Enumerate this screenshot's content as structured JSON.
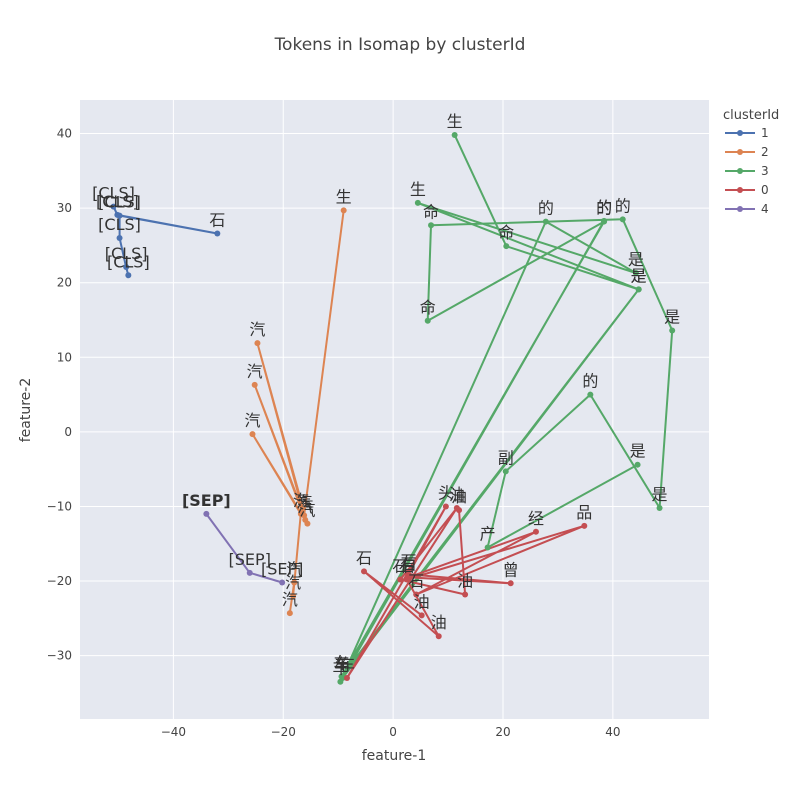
{
  "chart_data": {
    "type": "scatter",
    "title": "Tokens in Isomap by clusterId",
    "xlabel": "feature-1",
    "ylabel": "feature-2",
    "xlim": [
      -57,
      57.5
    ],
    "ylim": [
      -38.5,
      44.5
    ],
    "xticks": [
      -40,
      -20,
      0,
      20,
      40
    ],
    "yticks": [
      -30,
      -20,
      -10,
      0,
      10,
      20,
      30,
      40
    ],
    "grid": true,
    "legend_title": "clusterId",
    "legend_position": "top-right",
    "series": [
      {
        "name": "1",
        "color": "#4c72b0",
        "points": [
          {
            "x": -50.9,
            "y": 30.2,
            "label": "[CLS]"
          },
          {
            "x": -50.2,
            "y": 29.1,
            "label": "[CLS]"
          },
          {
            "x": -32.0,
            "y": 26.6,
            "label": "石"
          },
          {
            "x": -49.8,
            "y": 29.0,
            "label": "[CLS]"
          },
          {
            "x": -49.8,
            "y": 26.0,
            "label": "[CLS]"
          },
          {
            "x": -48.6,
            "y": 22.1,
            "label": "[CLS]"
          },
          {
            "x": -48.2,
            "y": 21.0,
            "label": "[CLS]"
          }
        ]
      },
      {
        "name": "2",
        "color": "#dd8452",
        "points": [
          {
            "x": -9.0,
            "y": 29.7,
            "label": "生"
          },
          {
            "x": -16.2,
            "y": -11.2,
            "label": "汽"
          },
          {
            "x": -24.7,
            "y": 11.9,
            "label": "汽"
          },
          {
            "x": -15.6,
            "y": -12.3,
            "label": "汽"
          },
          {
            "x": -25.2,
            "y": 6.3,
            "label": "汽"
          },
          {
            "x": -16.0,
            "y": -11.8,
            "label": "汽"
          },
          {
            "x": -25.6,
            "y": -0.3,
            "label": "汽"
          },
          {
            "x": -16.8,
            "y": -11.0,
            "label": "汽"
          },
          {
            "x": -18.2,
            "y": -22.0,
            "label": "汽"
          },
          {
            "x": -18.0,
            "y": -20.2,
            "label": "汽"
          },
          {
            "x": -18.8,
            "y": -24.3,
            "label": "汽"
          }
        ]
      },
      {
        "name": "3",
        "color": "#55a868",
        "points": [
          {
            "x": 11.2,
            "y": 39.8,
            "label": "生"
          },
          {
            "x": 20.6,
            "y": 24.9,
            "label": "命"
          },
          {
            "x": 44.7,
            "y": 19.1,
            "label": "是"
          },
          {
            "x": 4.5,
            "y": 30.7,
            "label": "生"
          },
          {
            "x": 44.2,
            "y": 21.3,
            "label": "是"
          },
          {
            "x": 27.8,
            "y": 28.2,
            "label": "的"
          },
          {
            "x": -9.6,
            "y": -33.5,
            "label": "车"
          },
          {
            "x": 38.4,
            "y": 28.3,
            "label": "的"
          },
          {
            "x": -9.2,
            "y": -33.0,
            "label": "车"
          },
          {
            "x": 44.7,
            "y": 19.1,
            "label": "是"
          },
          {
            "x": -9.4,
            "y": -32.8,
            "label": "车"
          },
          {
            "x": 38.4,
            "y": 28.2,
            "label": "的"
          },
          {
            "x": 6.3,
            "y": 14.9,
            "label": "命"
          },
          {
            "x": 6.9,
            "y": 27.7,
            "label": "命"
          },
          {
            "x": 41.8,
            "y": 28.5,
            "label": "的"
          },
          {
            "x": 50.8,
            "y": 13.6,
            "label": "是"
          },
          {
            "x": 48.5,
            "y": -10.2,
            "label": "是"
          },
          {
            "x": 35.9,
            "y": 5.0,
            "label": "的"
          },
          {
            "x": 20.5,
            "y": -5.3,
            "label": "副"
          },
          {
            "x": 17.2,
            "y": -15.5,
            "label": "产"
          },
          {
            "x": 44.5,
            "y": -4.4,
            "label": "是"
          }
        ]
      },
      {
        "name": "0",
        "color": "#c44e52",
        "points": [
          {
            "x": 12.0,
            "y": -10.5,
            "label": "油"
          },
          {
            "x": 13.1,
            "y": -21.8,
            "label": "油"
          },
          {
            "x": 1.3,
            "y": -19.8,
            "label": "石"
          },
          {
            "x": 11.6,
            "y": -10.2,
            "label": "油"
          },
          {
            "x": -8.4,
            "y": -33.0,
            "label": "车"
          },
          {
            "x": 9.6,
            "y": -10.0,
            "label": "头"
          },
          {
            "x": 2.8,
            "y": -19.1,
            "label": "石"
          },
          {
            "x": 21.4,
            "y": -20.3,
            "label": "曾"
          },
          {
            "x": 2.8,
            "y": -19.5,
            "label": "石"
          },
          {
            "x": 26.0,
            "y": -13.4,
            "label": "经"
          },
          {
            "x": 4.2,
            "y": -21.8,
            "label": "石"
          },
          {
            "x": 34.8,
            "y": -12.6,
            "label": "品"
          },
          {
            "x": 2.5,
            "y": -19.8,
            "label": "石"
          },
          {
            "x": 8.3,
            "y": -27.4,
            "label": "油"
          },
          {
            "x": -5.3,
            "y": -18.7,
            "label": "石"
          },
          {
            "x": 5.2,
            "y": -24.6,
            "label": "油"
          }
        ]
      },
      {
        "name": "4",
        "color": "#8172b3",
        "points": [
          {
            "x": -34.0,
            "y": -11.0,
            "label": "[SEP]"
          },
          {
            "x": -26.1,
            "y": -18.9,
            "label": "[SEP]"
          },
          {
            "x": -20.2,
            "y": -20.2,
            "label": "[SEP]"
          }
        ]
      }
    ],
    "annotations": [
      {
        "text": "[SEP]",
        "x": -34.0,
        "y": -11.0,
        "bold": true
      }
    ]
  }
}
